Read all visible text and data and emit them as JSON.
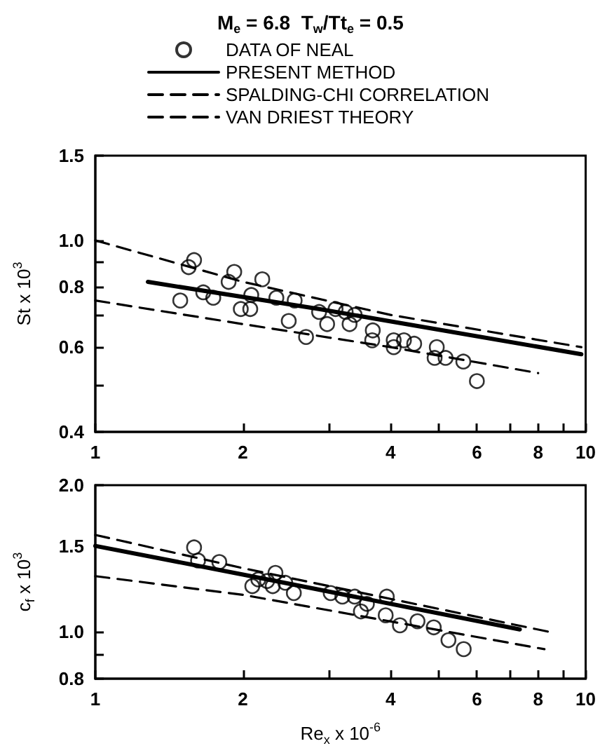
{
  "chart_data": [
    {
      "type": "scatter",
      "title": "M$_{e}$ = 6.8  T$_{w}$/Tt$_{e}$ = 0.5",
      "ylabel": "St x 10$^{3}$",
      "log": "xy",
      "legend": "top",
      "xlim": [
        1,
        10
      ],
      "ylim": [
        0.4,
        1.5
      ],
      "xticks": [
        1,
        2,
        {
          "value": 3,
          "label": null
        },
        4,
        {
          "value": 5,
          "label": null
        },
        6,
        {
          "value": 7,
          "label": null
        },
        8,
        {
          "value": 9,
          "label": null
        },
        10
      ],
      "yticks": [
        0.4,
        {
          "value": 0.5,
          "label": null
        },
        0.6,
        {
          "value": 0.7,
          "label": null
        },
        0.8,
        {
          "value": 0.9,
          "label": null
        },
        {
          "value": 1,
          "label": "1.0"
        },
        1.5
      ],
      "series": [
        {
          "name": "DATA OF NEAL",
          "marker": "circle",
          "color": "#000000",
          "x": [
            1.49,
            1.55,
            1.59,
            1.66,
            1.74,
            1.87,
            1.92,
            1.98,
            2.07,
            2.08,
            2.19,
            2.34,
            2.48,
            2.55,
            2.69,
            2.86,
            2.97,
            3.09,
            3.24,
            3.3,
            3.38,
            3.68,
            3.67,
            4.06,
            4.06,
            4.26,
            4.47,
            4.97,
            4.92,
            5.18,
            5.63,
            6.0
          ],
          "values": [
            0.75,
            0.88,
            0.91,
            0.78,
            0.76,
            0.82,
            0.86,
            0.72,
            0.72,
            0.77,
            0.83,
            0.76,
            0.68,
            0.75,
            0.63,
            0.71,
            0.67,
            0.72,
            0.71,
            0.67,
            0.7,
            0.65,
            0.62,
            0.62,
            0.6,
            0.62,
            0.61,
            0.6,
            0.57,
            0.57,
            0.56,
            0.51
          ]
        },
        {
          "name": "PRESENT METHOD",
          "type": "line",
          "line_style": "solid",
          "color": "#000000",
          "x": [
            1.28,
            2.86,
            9.8
          ],
          "values": [
            0.82,
            0.72,
            0.58
          ]
        },
        {
          "name": "SPALDING-CHI CORRELATION",
          "type": "line",
          "line_style": "dashed",
          "color": "#000000",
          "x": [
            1,
            2,
            4,
            8
          ],
          "values": [
            0.75,
            0.67,
            0.6,
            0.53
          ]
        },
        {
          "name": "VAN DRIEST THEORY",
          "type": "line",
          "line_style": "dashed",
          "color": "#000000",
          "x": [
            1,
            2,
            4,
            9.8
          ],
          "values": [
            1.0,
            0.82,
            0.7,
            0.6
          ]
        }
      ]
    },
    {
      "type": "scatter",
      "xlabel": "Re$_{x}$ x 10$^{-6}$",
      "ylabel": "c$_{f}$ x 10$^{3}$",
      "log": "xy",
      "legend": false,
      "xlim": [
        1,
        10
      ],
      "ylim": [
        0.8,
        2.0
      ],
      "xticks": [
        1,
        2,
        {
          "value": 3,
          "label": null
        },
        4,
        {
          "value": 5,
          "label": null
        },
        6,
        {
          "value": 7,
          "label": null
        },
        8,
        {
          "value": 9,
          "label": null
        },
        10
      ],
      "yticks": [
        0.8,
        {
          "value": 0.9,
          "label": null
        },
        {
          "value": 1,
          "label": "1.0"
        },
        1.5,
        {
          "value": 2,
          "label": "2.0"
        }
      ],
      "series": [
        {
          "marker": "circle",
          "color": "#000000",
          "x": [
            1.59,
            1.62,
            1.79,
            2.09,
            2.15,
            2.24,
            2.3,
            2.33,
            2.44,
            2.54,
            3.02,
            3.19,
            3.38,
            3.48,
            3.58,
            3.93,
            3.91,
            4.18,
            4.54,
            4.9,
            5.25,
            5.64
          ],
          "values": [
            1.49,
            1.4,
            1.39,
            1.24,
            1.28,
            1.27,
            1.24,
            1.32,
            1.26,
            1.2,
            1.2,
            1.18,
            1.18,
            1.1,
            1.14,
            1.18,
            1.08,
            1.03,
            1.05,
            1.02,
            0.96,
            0.92
          ]
        },
        {
          "type": "line",
          "line_style": "solid",
          "color": "#000000",
          "x": [
            1,
            2,
            7.34
          ],
          "values": [
            1.5,
            1.31,
            1.01
          ]
        },
        {
          "type": "line",
          "line_style": "dashed",
          "color": "#000000",
          "x": [
            1,
            2,
            8.24
          ],
          "values": [
            1.3,
            1.19,
            0.92
          ]
        },
        {
          "type": "line",
          "line_style": "dashed",
          "color": "#000000",
          "x": [
            1,
            2,
            8.37
          ],
          "values": [
            1.58,
            1.35,
            1.0
          ]
        }
      ]
    }
  ]
}
